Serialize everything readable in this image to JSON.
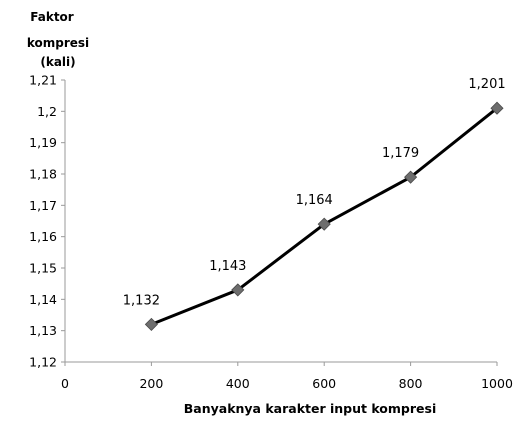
{
  "chart_data": {
    "type": "line",
    "ylabel_lines": [
      "Faktor",
      "kompresi",
      "(kali)"
    ],
    "xlabel": "Banyaknya  karakter input kompresi",
    "x_ticks": [
      "0",
      "200",
      "400",
      "600",
      "800",
      "1000"
    ],
    "y_ticks": [
      "1,12",
      "1,13",
      "1,14",
      "1,15",
      "1,16",
      "1,17",
      "1,18",
      "1,19",
      "1,2",
      "1,21"
    ],
    "xlim": [
      0,
      1000
    ],
    "ylim": [
      1.12,
      1.21
    ],
    "grid": false,
    "series": [
      {
        "x": [
          200,
          400,
          600,
          800,
          1000
        ],
        "values": [
          1.132,
          1.143,
          1.164,
          1.179,
          1.201
        ],
        "labels": [
          "1,132",
          "1,143",
          "1,164",
          "1,179",
          "1,201"
        ]
      }
    ],
    "colors": {
      "line": "#000000",
      "marker": "#6d6d6d",
      "axis": "#9a9a9a"
    }
  }
}
